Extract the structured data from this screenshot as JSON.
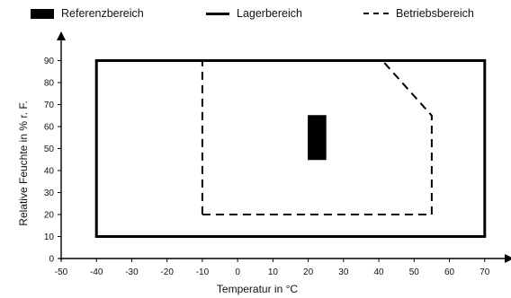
{
  "chart_data": {
    "type": "area",
    "title": "",
    "xlabel": "Temperatur in °C",
    "ylabel": "Relative Feuchte in % r. F.",
    "xlim": [
      -50,
      70
    ],
    "ylim": [
      0,
      90
    ],
    "xticks": [
      -50,
      -40,
      -30,
      -20,
      -10,
      0,
      10,
      20,
      30,
      40,
      50,
      60,
      70
    ],
    "yticks": [
      0,
      10,
      20,
      30,
      40,
      50,
      60,
      70,
      80,
      90
    ],
    "grid": false,
    "legend_position": "top",
    "series": [
      {
        "name": "Referenzbereich",
        "style": "filled",
        "color": "#000000",
        "points": [
          [
            20,
            45
          ],
          [
            25,
            45
          ],
          [
            25,
            65
          ],
          [
            20,
            65
          ]
        ]
      },
      {
        "name": "Lagerbereich",
        "style": "solid",
        "color": "#000000",
        "points": [
          [
            -40,
            10
          ],
          [
            70,
            10
          ],
          [
            70,
            90
          ],
          [
            -40,
            90
          ]
        ]
      },
      {
        "name": "Betriebsbereich",
        "style": "dashed",
        "color": "#000000",
        "points": [
          [
            -10,
            20
          ],
          [
            55,
            20
          ],
          [
            55,
            65
          ],
          [
            41,
            90
          ],
          [
            -10,
            90
          ]
        ]
      }
    ]
  }
}
